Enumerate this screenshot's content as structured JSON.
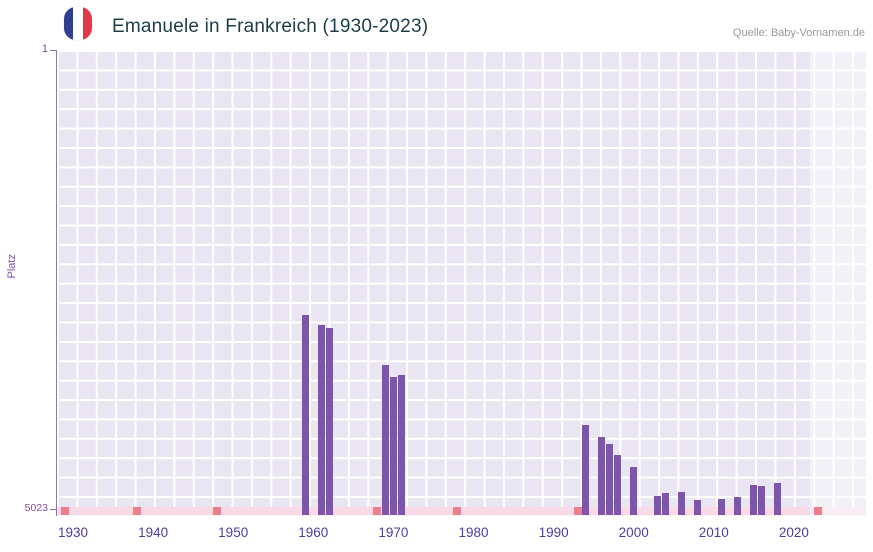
{
  "header": {
    "title": "Emanuele in Frankreich (1930-2023)",
    "source": "Quelle: Baby-Vornamen.de",
    "flag": {
      "country": "France",
      "colors": {
        "blue": "#2e3f92",
        "white": "#ffffff",
        "red": "#dd3a49"
      }
    }
  },
  "chart_data": {
    "type": "bar",
    "title": "Emanuele in Frankreich (1930-2023)",
    "xlabel": "",
    "ylabel": "Platz",
    "legend": false,
    "grid": true,
    "y_axis": {
      "top_label": "1",
      "bottom_label": "5023",
      "min": 1,
      "max": 5023,
      "inverted": true
    },
    "x_axis": {
      "ticks": [
        1930,
        1940,
        1950,
        1960,
        1970,
        1980,
        1990,
        2000,
        2010,
        2020
      ],
      "min": 1928,
      "max": 2029
    },
    "bars": [
      {
        "year": 1959,
        "rank": 2900
      },
      {
        "year": 1961,
        "rank": 3010
      },
      {
        "year": 1962,
        "rank": 3040
      },
      {
        "year": 1969,
        "rank": 3450
      },
      {
        "year": 1970,
        "rank": 3580
      },
      {
        "year": 1971,
        "rank": 3560
      },
      {
        "year": 1994,
        "rank": 4100
      },
      {
        "year": 1996,
        "rank": 4230
      },
      {
        "year": 1997,
        "rank": 4310
      },
      {
        "year": 1998,
        "rank": 4430
      },
      {
        "year": 2000,
        "rank": 4560
      },
      {
        "year": 2003,
        "rank": 4880
      },
      {
        "year": 2004,
        "rank": 4850
      },
      {
        "year": 2006,
        "rank": 4840
      },
      {
        "year": 2008,
        "rank": 4920
      },
      {
        "year": 2011,
        "rank": 4910
      },
      {
        "year": 2013,
        "rank": 4890
      },
      {
        "year": 2015,
        "rank": 4760
      },
      {
        "year": 2016,
        "rank": 4770
      },
      {
        "year": 2018,
        "rank": 4740
      }
    ],
    "baseline_markers": {
      "years": [
        1929,
        1938,
        1948,
        1968,
        1978,
        1993,
        2023
      ]
    },
    "highlight_band": {
      "from": 2022,
      "to": 2029
    },
    "colors": {
      "bar": "#7d55ad",
      "plot_background": "#e9e5f2",
      "grid": "#ffffff",
      "baseline_strip": "#f8d9e6",
      "baseline_marker": "#ec7f8e",
      "highlight_band": "rgba(255,255,255,0.48)",
      "x_tick_label": "#4a3fa3",
      "y_tick_label": "#8a4a9b",
      "axis_line": "#8678bd",
      "title": "#1d3d49",
      "source": "#999999"
    }
  }
}
